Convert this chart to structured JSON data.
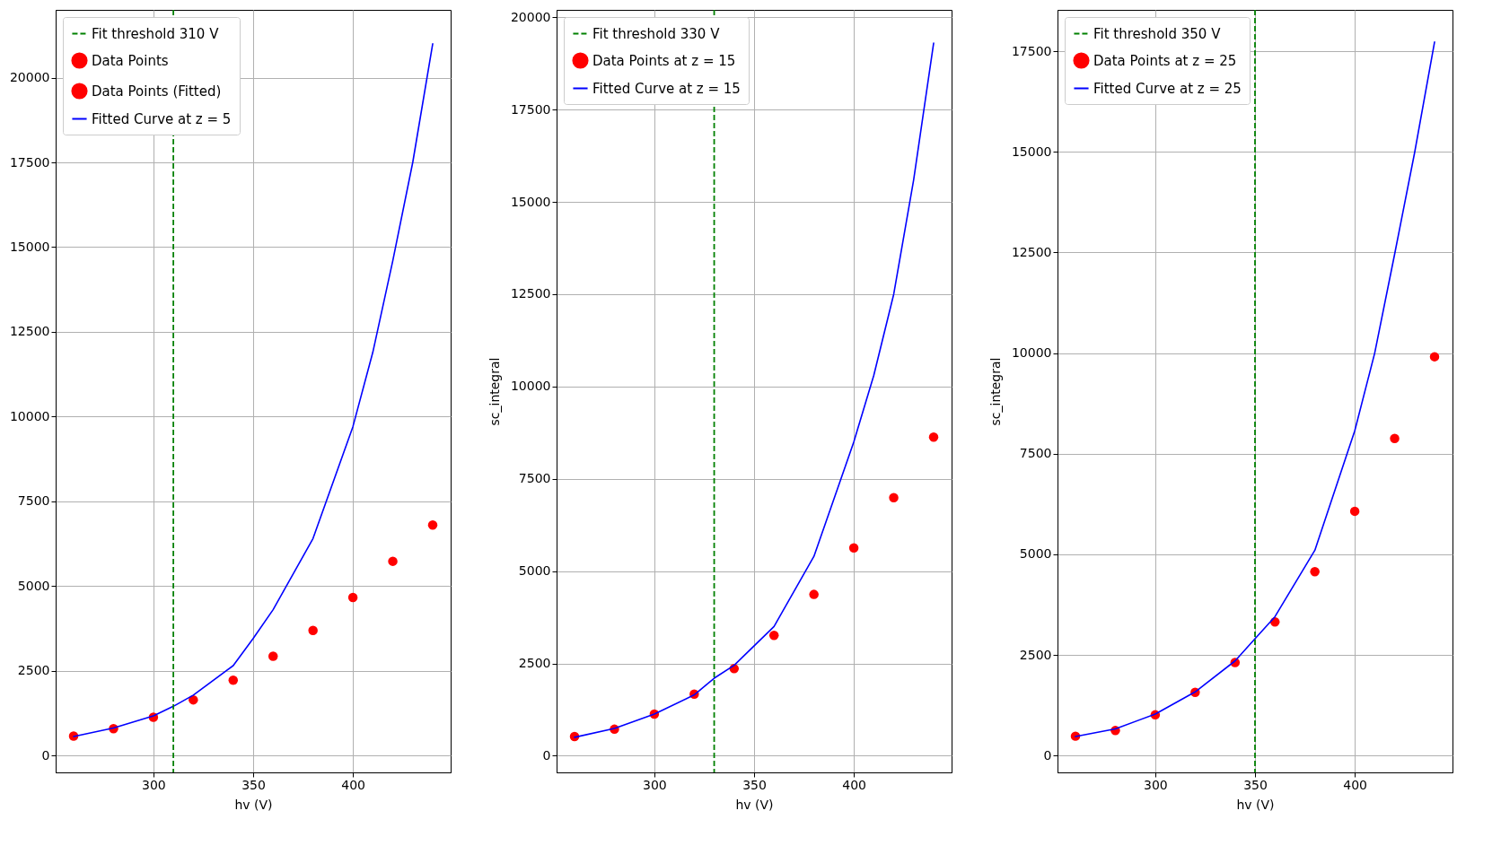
{
  "chart_data": [
    {
      "type": "scatter",
      "xlabel": "hv (V)",
      "xlim": [
        251,
        449
      ],
      "xticks": [
        300,
        350,
        400
      ],
      "ylim": [
        -500,
        22000
      ],
      "yticks": [
        0,
        2500,
        5000,
        7500,
        10000,
        12500,
        15000,
        17500,
        20000
      ],
      "grid": true,
      "legend": "top left",
      "marker": "circle",
      "ref_lines": [
        {
          "axis": "x",
          "value": 310,
          "label": "Fit threshold 310 V",
          "color": "#008000",
          "line_style": "dashed"
        }
      ],
      "series": [
        {
          "name": "Data Points",
          "color": "#ff0000",
          "x": [
            320,
            340,
            360,
            380,
            400,
            420,
            440
          ],
          "values": [
            1640,
            2220,
            2930,
            3690,
            4660,
            5730,
            6800
          ]
        },
        {
          "name": "Data Points (Fitted)",
          "color": "#ff0000",
          "x": [
            260,
            280,
            300
          ],
          "values": [
            570,
            790,
            1130
          ]
        },
        {
          "name": "Fitted Curve at z = 5",
          "type": "line",
          "marker": "none",
          "color": "#0000ff",
          "x": [
            260,
            280,
            300,
            310,
            320,
            340,
            350,
            360,
            380,
            400,
            410,
            420,
            430,
            440
          ],
          "values": [
            560,
            810,
            1170,
            1450,
            1780,
            2650,
            3450,
            4300,
            6400,
            9700,
            11900,
            14600,
            17500,
            21000
          ]
        }
      ]
    },
    {
      "type": "scatter",
      "xlabel": "hv (V)",
      "ylabel": "sc_integral",
      "xlim": [
        251,
        449
      ],
      "xticks": [
        300,
        350,
        400
      ],
      "ylim": [
        -450,
        20200
      ],
      "yticks": [
        0,
        2500,
        5000,
        7500,
        10000,
        12500,
        15000,
        17500,
        20000
      ],
      "grid": true,
      "legend": "top left",
      "marker": "circle",
      "ref_lines": [
        {
          "axis": "x",
          "value": 330,
          "label": "Fit threshold 330 V",
          "color": "#008000",
          "line_style": "dashed"
        }
      ],
      "series": [
        {
          "name": "Data Points at z = 15",
          "color": "#ff0000",
          "x": [
            260,
            280,
            300,
            320,
            340,
            360,
            380,
            400,
            420,
            440
          ],
          "values": [
            520,
            720,
            1130,
            1670,
            2360,
            3260,
            4370,
            5630,
            6990,
            8630
          ]
        },
        {
          "name": "Fitted Curve at z = 15",
          "type": "line",
          "marker": "none",
          "color": "#0000ff",
          "x": [
            260,
            280,
            300,
            320,
            330,
            340,
            360,
            380,
            400,
            410,
            420,
            430,
            440
          ],
          "values": [
            500,
            740,
            1130,
            1650,
            2100,
            2450,
            3500,
            5400,
            8500,
            10300,
            12500,
            15600,
            19300
          ]
        }
      ]
    },
    {
      "type": "scatter",
      "xlabel": "hv (V)",
      "ylabel": "sc_integral",
      "xlim": [
        251,
        449
      ],
      "xticks": [
        300,
        350,
        400
      ],
      "ylim": [
        -420,
        18530
      ],
      "yticks": [
        0,
        2500,
        5000,
        7500,
        10000,
        12500,
        15000,
        17500
      ],
      "grid": true,
      "legend": "top left",
      "marker": "circle",
      "ref_lines": [
        {
          "axis": "x",
          "value": 350,
          "label": "Fit threshold 350 V",
          "color": "#008000",
          "line_style": "dashed"
        }
      ],
      "series": [
        {
          "name": "Data Points at z = 25",
          "color": "#ff0000",
          "x": [
            260,
            280,
            300,
            320,
            340,
            360,
            380,
            400,
            420,
            440
          ],
          "values": [
            480,
            620,
            1010,
            1570,
            2310,
            3320,
            4570,
            6070,
            7880,
            9910
          ]
        },
        {
          "name": "Fitted Curve at z = 25",
          "type": "line",
          "marker": "none",
          "color": "#0000ff",
          "x": [
            260,
            280,
            300,
            320,
            340,
            350,
            360,
            380,
            400,
            410,
            420,
            430,
            440
          ],
          "values": [
            470,
            660,
            1030,
            1580,
            2350,
            2900,
            3450,
            5100,
            8070,
            10000,
            12460,
            14980,
            17730
          ]
        }
      ]
    }
  ]
}
